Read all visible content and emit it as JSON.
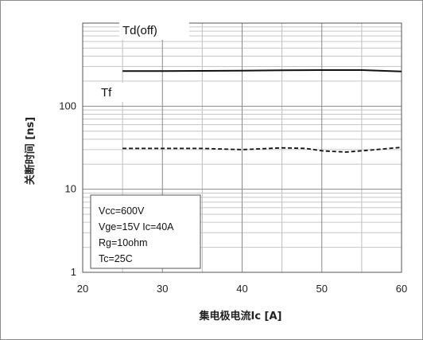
{
  "chart_data": {
    "type": "line",
    "x_axis": {
      "label": "集电极电流Ic [A]",
      "range": [
        20,
        60
      ],
      "ticks": [
        20,
        30,
        40,
        50,
        60
      ],
      "tick_labels": [
        "20",
        "30",
        "40",
        "50",
        "60"
      ]
    },
    "y_axis": {
      "label": "关断时间 [ns]",
      "scale": "log",
      "range": [
        1,
        1000
      ],
      "ticks": [
        1,
        10,
        100
      ],
      "tick_labels": [
        "1",
        "10",
        "100"
      ]
    },
    "grid": true,
    "series": [
      {
        "name": "Td(off)",
        "style": "solid",
        "color": "#111111",
        "x": [
          25,
          30,
          35,
          40,
          45,
          50,
          55,
          60
        ],
        "y": [
          265,
          264,
          266,
          268,
          270,
          272,
          272,
          262
        ]
      },
      {
        "name": "Tf",
        "style": "dashed",
        "color": "#111111",
        "x": [
          25,
          30,
          35,
          40,
          45,
          48,
          50,
          53,
          56,
          60
        ],
        "y": [
          31,
          31,
          31,
          30,
          31.5,
          31,
          29,
          28,
          29.5,
          32
        ]
      }
    ],
    "annotation": [
      "Vcc=600V",
      "Vge=15V Ic=40A",
      "Rg=10ohm",
      "Tc=25C"
    ]
  }
}
